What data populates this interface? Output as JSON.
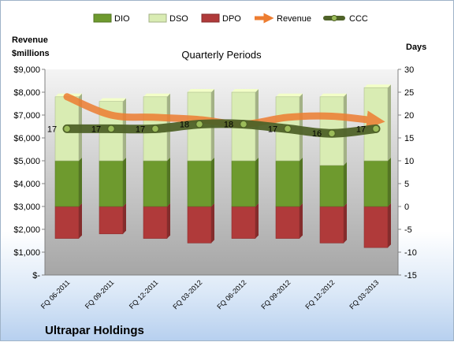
{
  "chart_data": {
    "type": "bar",
    "title": "Quarterly Periods",
    "company": "Ultrapar Holdings",
    "left_axis_title": [
      "Revenue",
      "$millions"
    ],
    "right_axis_title": "Days",
    "categories": [
      "FQ 06-2011",
      "FQ 09-2011",
      "FQ 12-2011",
      "FQ 03-2012",
      "FQ 06-2012",
      "FQ 09-2012",
      "FQ 12-2012",
      "FQ 03-2013"
    ],
    "left_axis": {
      "min": 0,
      "max": 9000,
      "step": 1000,
      "tick_labels": [
        "$-",
        "$1,000",
        "$2,000",
        "$3,000",
        "$4,000",
        "$5,000",
        "$6,000",
        "$7,000",
        "$8,000",
        "$9,000"
      ]
    },
    "right_axis": {
      "min": -15,
      "max": 30,
      "step": 5,
      "tick_labels": [
        "-15",
        "-10",
        "-5",
        "0",
        "5",
        "10",
        "15",
        "20",
        "25",
        "30"
      ]
    },
    "series": [
      {
        "name": "DIO",
        "axis": "right",
        "kind": "stacked-bar",
        "color": "#6e9a2e",
        "values": [
          10,
          10,
          10,
          10,
          10,
          10,
          9,
          10
        ]
      },
      {
        "name": "DSO",
        "axis": "right",
        "kind": "stacked-bar",
        "color": "#d9ecb3",
        "values": [
          14,
          13,
          14,
          15,
          15,
          14,
          15,
          16
        ]
      },
      {
        "name": "DPO",
        "axis": "right",
        "kind": "bar-negative",
        "color": "#b03a3a",
        "values": [
          -7,
          -6,
          -7,
          -8,
          -7,
          -7,
          -8,
          -9
        ]
      },
      {
        "name": "Revenue",
        "axis": "left",
        "kind": "arrow-line",
        "color": "#ed7d31",
        "values": [
          7800,
          7000,
          6900,
          6800,
          6600,
          6900,
          6950,
          6750
        ]
      },
      {
        "name": "CCC",
        "axis": "right",
        "kind": "line-markers",
        "color": "#4f6228",
        "values": [
          17,
          17,
          17,
          18,
          18,
          17,
          16,
          17
        ],
        "labels": [
          "17",
          "17",
          "17",
          "18",
          "18",
          "17",
          "16",
          "17"
        ]
      }
    ],
    "legend": {
      "position": "top",
      "entries": [
        "DIO",
        "DSO",
        "DPO",
        "Revenue",
        "CCC"
      ]
    },
    "grid": false
  }
}
